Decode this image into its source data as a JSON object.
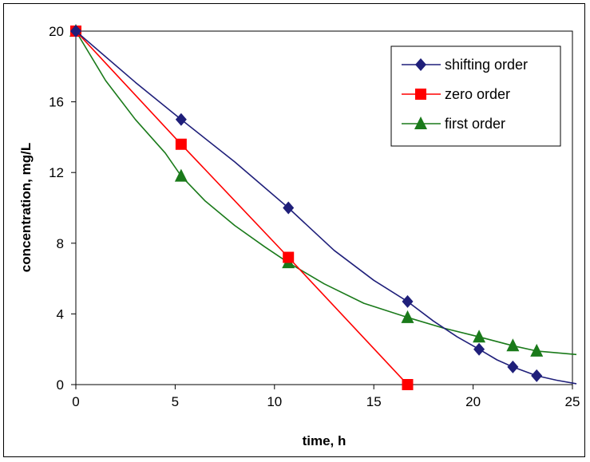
{
  "chart_data": {
    "type": "line",
    "xlabel": "time, h",
    "ylabel": "concentration, mg/L",
    "xlim": [
      0,
      25
    ],
    "ylim": [
      0,
      20
    ],
    "xticks": [
      "0",
      "5",
      "10",
      "15",
      "20",
      "25"
    ],
    "yticks": [
      "0",
      "4",
      "8",
      "12",
      "16",
      "20"
    ],
    "xtick_values": [
      0,
      5,
      10,
      15,
      20,
      25
    ],
    "ytick_values": [
      0,
      4,
      8,
      12,
      16,
      20
    ],
    "grid": false,
    "legend_position": "top-right",
    "series": [
      {
        "name": "shifting order",
        "color": "#1f1f7a",
        "marker": "diamond",
        "points": [
          [
            0,
            20
          ],
          [
            5.3,
            15
          ],
          [
            10.7,
            10
          ],
          [
            16.7,
            4.7
          ],
          [
            20.3,
            2.0
          ],
          [
            22.0,
            1.0
          ],
          [
            23.2,
            0.5
          ]
        ],
        "curve": [
          [
            0,
            20
          ],
          [
            3,
            17.1
          ],
          [
            5.3,
            15
          ],
          [
            8,
            12.6
          ],
          [
            10.7,
            10
          ],
          [
            13,
            7.6
          ],
          [
            15,
            5.9
          ],
          [
            16.7,
            4.7
          ],
          [
            18,
            3.6
          ],
          [
            19.2,
            2.7
          ],
          [
            20.3,
            2.0
          ],
          [
            21.2,
            1.4
          ],
          [
            22.0,
            1.0
          ],
          [
            23.2,
            0.5
          ],
          [
            24.2,
            0.25
          ],
          [
            25.2,
            0.05
          ]
        ]
      },
      {
        "name": "zero order",
        "color": "#ff0000",
        "marker": "square",
        "points": [
          [
            0,
            20
          ],
          [
            5.3,
            13.6
          ],
          [
            10.7,
            7.2
          ],
          [
            16.7,
            0
          ]
        ],
        "curve": [
          [
            0,
            20
          ],
          [
            5.3,
            13.6
          ],
          [
            10.7,
            7.2
          ],
          [
            16.7,
            0
          ]
        ]
      },
      {
        "name": "first order",
        "color": "#1a7a1a",
        "marker": "triangle",
        "points": [
          [
            0,
            20
          ],
          [
            5.3,
            11.8
          ],
          [
            10.7,
            6.9
          ],
          [
            16.7,
            3.8
          ],
          [
            20.3,
            2.7
          ],
          [
            22.0,
            2.2
          ],
          [
            23.2,
            1.9
          ]
        ],
        "curve": [
          [
            0,
            20
          ],
          [
            1.5,
            17.2
          ],
          [
            3,
            15.0
          ],
          [
            4.5,
            13.1
          ],
          [
            5.3,
            11.8
          ],
          [
            6.5,
            10.4
          ],
          [
            8,
            9.0
          ],
          [
            9.5,
            7.8
          ],
          [
            10.7,
            6.9
          ],
          [
            12.5,
            5.7
          ],
          [
            14.5,
            4.6
          ],
          [
            16.7,
            3.8
          ],
          [
            18.5,
            3.2
          ],
          [
            20.3,
            2.7
          ],
          [
            22.0,
            2.2
          ],
          [
            23.2,
            1.9
          ],
          [
            25.2,
            1.7
          ]
        ]
      }
    ]
  }
}
